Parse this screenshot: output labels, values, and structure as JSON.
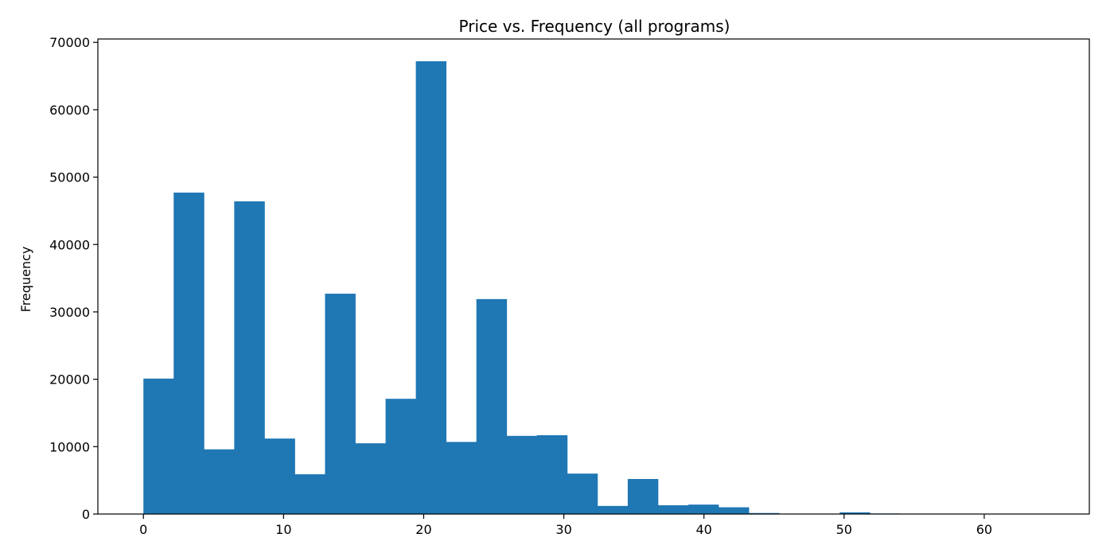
{
  "chart_data": {
    "type": "bar",
    "title": "Price vs. Frequency (all programs)",
    "xlabel": "",
    "ylabel": "Frequency",
    "xlim": [
      -3.25,
      67.5
    ],
    "ylim": [
      0,
      70500
    ],
    "xticks": [
      0,
      10,
      20,
      30,
      40,
      50,
      60
    ],
    "yticks": [
      0,
      10000,
      20000,
      30000,
      40000,
      50000,
      60000,
      70000
    ],
    "bin_start": 0,
    "bin_width": 2.16,
    "values": [
      20100,
      47700,
      9600,
      46400,
      11200,
      5900,
      32700,
      10500,
      17100,
      67200,
      10700,
      31900,
      11600,
      11700,
      6000,
      1200,
      5200,
      1300,
      1400,
      1000,
      150,
      50,
      50,
      250,
      80,
      50,
      30,
      30,
      30,
      30
    ],
    "color": "#1f77b4",
    "grid": false,
    "legend": "none"
  }
}
